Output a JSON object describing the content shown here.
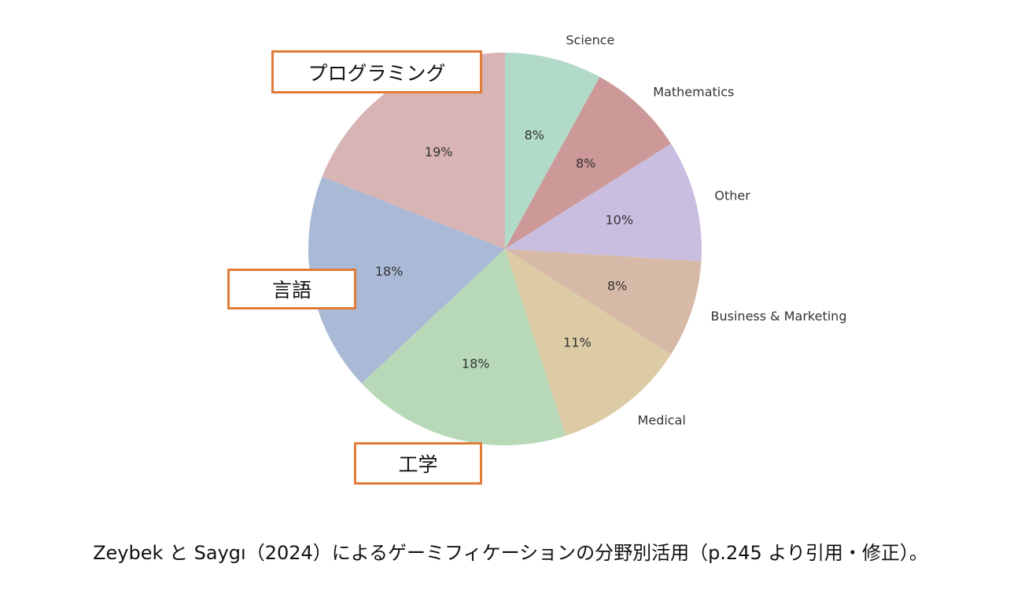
{
  "chart_data": {
    "type": "pie",
    "categories": [
      "Science",
      "Mathematics",
      "Other",
      "Business & Marketing",
      "Medical",
      "",
      "",
      ""
    ],
    "values": [
      8,
      8,
      10,
      8,
      11,
      18,
      18,
      19
    ],
    "percent_labels": [
      "8%",
      "8%",
      "10%",
      "8%",
      "11%",
      "18%",
      "18%",
      "19%"
    ],
    "colors": [
      "#b1dbc8",
      "#cc9998",
      "#c9bee0",
      "#d7b9a8",
      "#dccba4",
      "#b8d9b7",
      "#a9b9d6",
      "#d8b4b4"
    ],
    "start_angle_deg": 90,
    "direction": "clockwise"
  },
  "callouts": {
    "programming": "プログラミング",
    "language": "言語",
    "engineering": "工学",
    "border_color": "#e07b39"
  },
  "caption": "Zeybek と Saygı（2024）によるゲーミフィケーションの分野別活用（p.245 より引用・修正）。"
}
